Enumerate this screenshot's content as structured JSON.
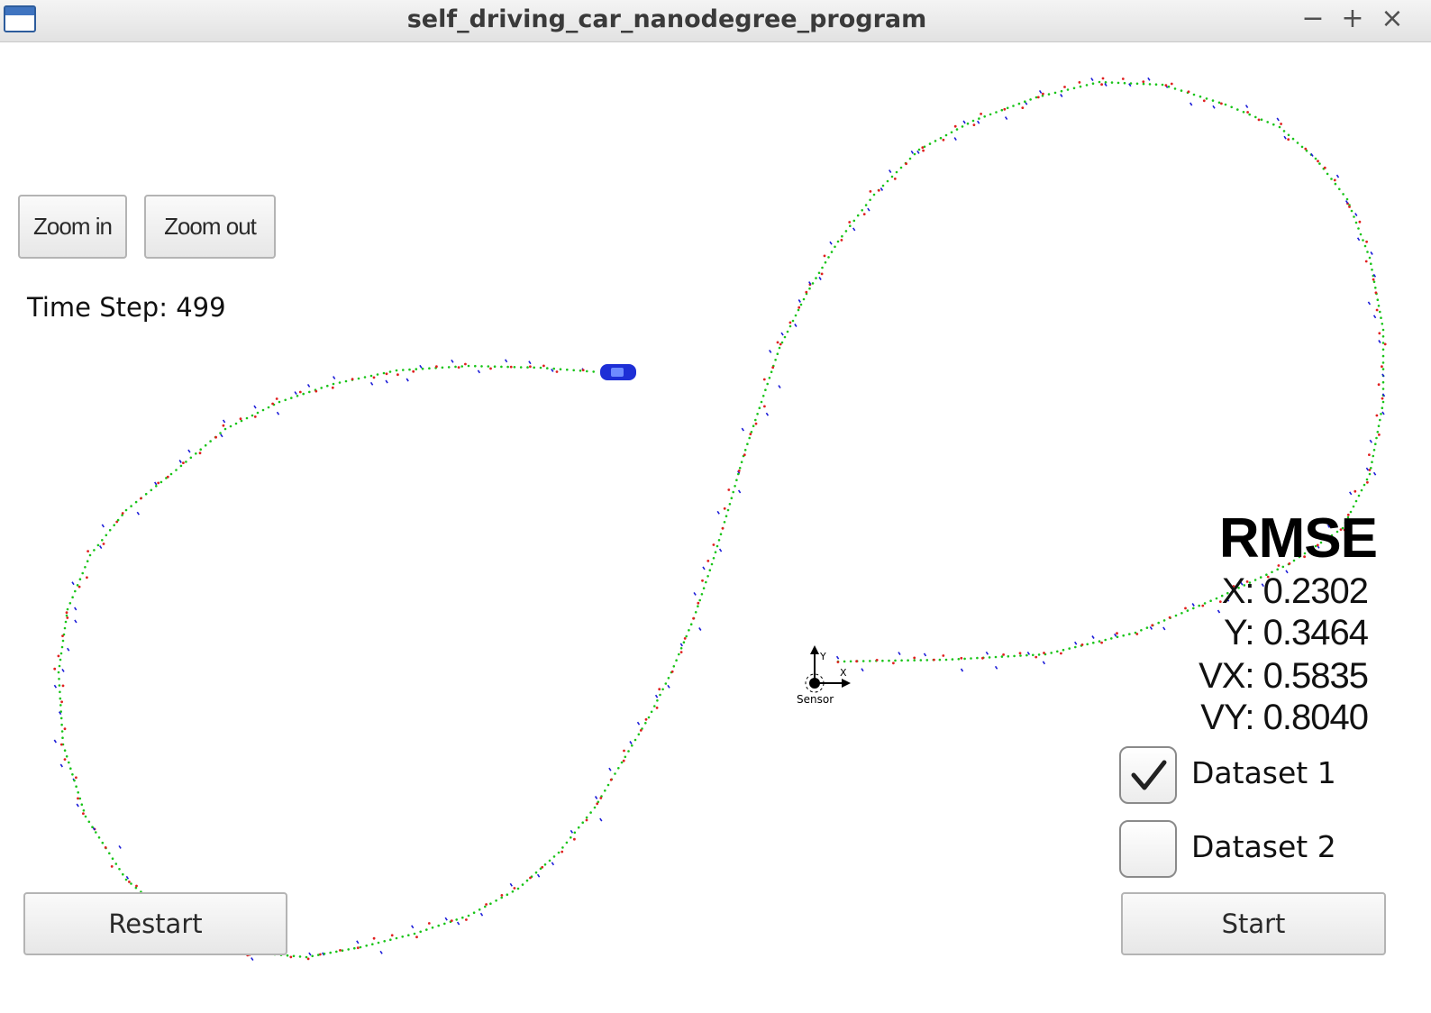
{
  "window": {
    "title": "self_driving_car_nanodegree_program",
    "icon": "window-icon",
    "controls": [
      "minimize-icon",
      "maximize-icon",
      "close-icon"
    ],
    "minimize_glyph": "−",
    "maximize_glyph": "+",
    "close_glyph": "×"
  },
  "toolbar": {
    "zoom_in_label": "Zoom in",
    "zoom_out_label": "Zoom out"
  },
  "status": {
    "time_step_label": "Time Step: 499"
  },
  "rmse": {
    "title": "RMSE",
    "x": "X: 0.2302",
    "y": "Y: 0.3464",
    "vx": "VX: 0.5835",
    "vy": "VY: 0.8040"
  },
  "datasets": [
    {
      "label": "Dataset 1",
      "checked": true
    },
    {
      "label": "Dataset 2",
      "checked": false
    }
  ],
  "buttons": {
    "restart_label": "Restart",
    "start_label": "Start"
  },
  "scene": {
    "sensor_label": "Sensor",
    "axis_x_label": "X",
    "axis_y_label": "Y",
    "colors": {
      "estimate": "#19c419",
      "lidar": "#e02020",
      "radar": "#1c1cd8",
      "car": "#1e2fd6"
    }
  }
}
